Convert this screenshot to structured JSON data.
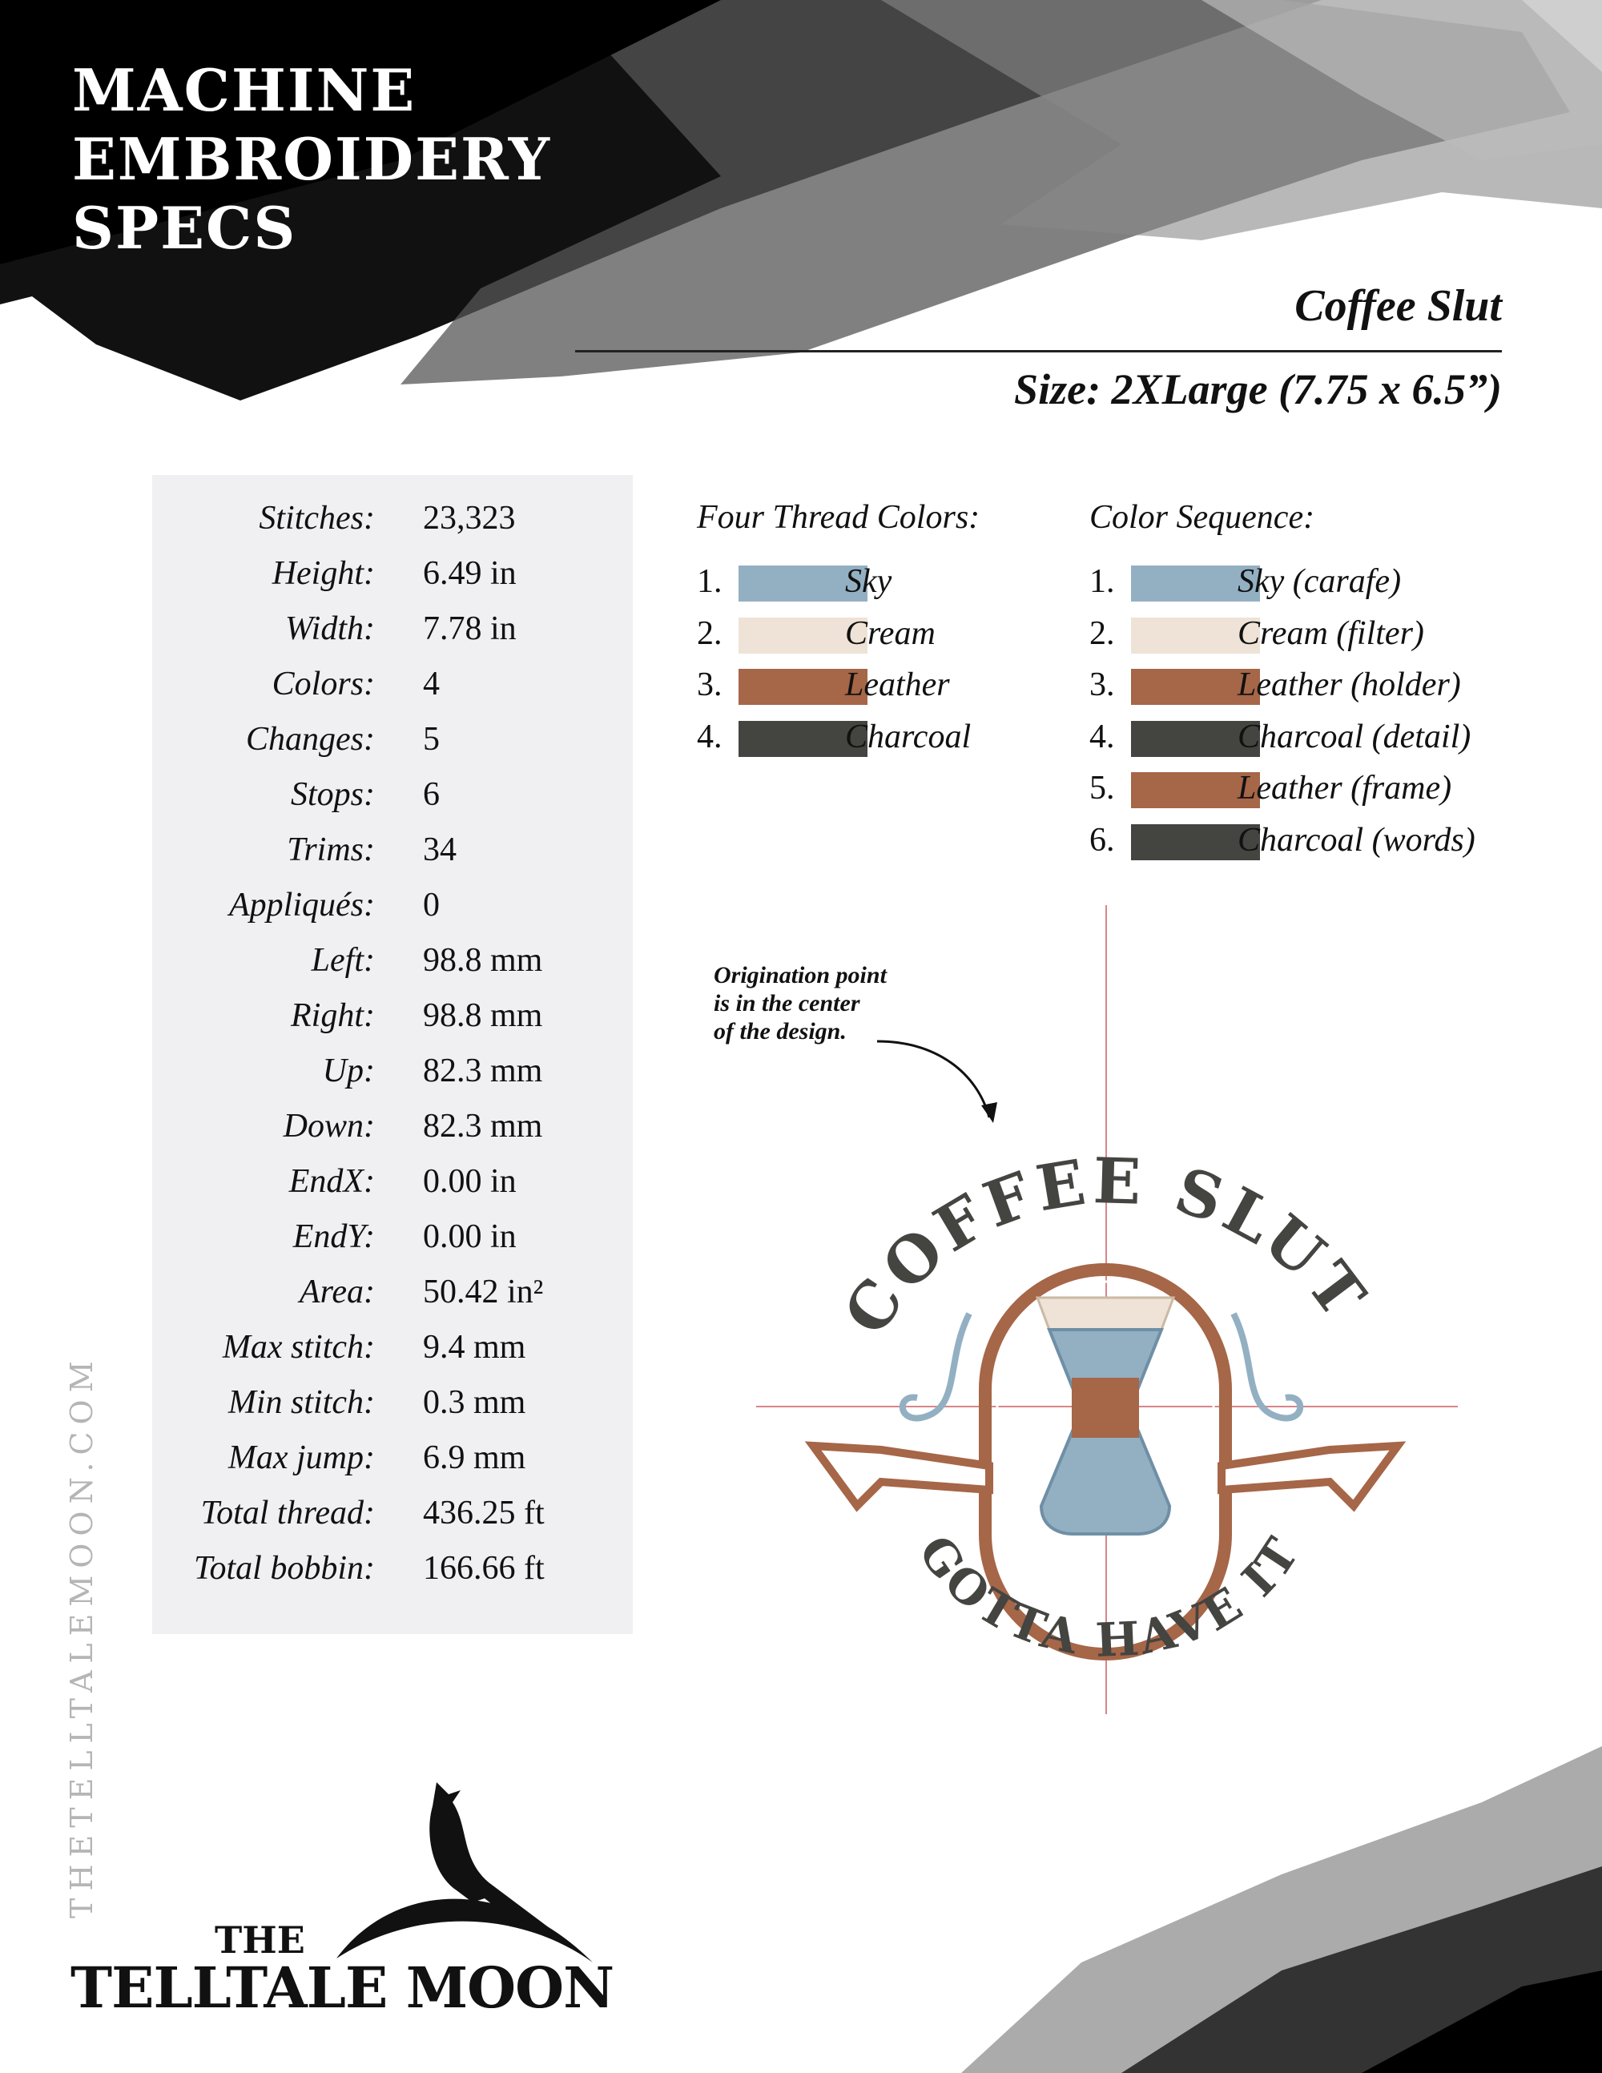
{
  "header": {
    "lines": [
      "MACHINE",
      "EMBROIDERY",
      "SPECS"
    ]
  },
  "design": {
    "title": "Coffee Slut",
    "size": "Size: 2XLarge (7.75 x 6.5”)"
  },
  "stats": [
    {
      "label": "Stitches:",
      "value": "23,323"
    },
    {
      "label": "Height:",
      "value": "6.49 in"
    },
    {
      "label": "Width:",
      "value": "7.78 in"
    },
    {
      "label": "Colors:",
      "value": "4"
    },
    {
      "label": "Changes:",
      "value": "5"
    },
    {
      "label": "Stops:",
      "value": "6"
    },
    {
      "label": "Trims:",
      "value": "34"
    },
    {
      "label": "Appliqués:",
      "value": "0"
    },
    {
      "label": "Left:",
      "value": "98.8 mm"
    },
    {
      "label": "Right:",
      "value": "98.8 mm"
    },
    {
      "label": "Up:",
      "value": "82.3 mm"
    },
    {
      "label": "Down:",
      "value": "82.3 mm"
    },
    {
      "label": "EndX:",
      "value": "0.00 in"
    },
    {
      "label": "EndY:",
      "value": "0.00 in"
    },
    {
      "label": "Area:",
      "value": "50.42 in²"
    },
    {
      "label": "Max stitch:",
      "value": "9.4 mm"
    },
    {
      "label": "Min stitch:",
      "value": "0.3 mm"
    },
    {
      "label": "Max jump:",
      "value": "6.9 mm"
    },
    {
      "label": "Total thread:",
      "value": "436.25 ft"
    },
    {
      "label": "Total bobbin:",
      "value": "166.66 ft"
    }
  ],
  "thread_colors": {
    "heading": "Four Thread Colors:",
    "items": [
      {
        "num": "1.",
        "name": "Sky",
        "color": "#93b0c3"
      },
      {
        "num": "2.",
        "name": "Cream",
        "color": "#eee3d6"
      },
      {
        "num": "3.",
        "name": "Leather",
        "color": "#a66648"
      },
      {
        "num": "4.",
        "name": "Charcoal",
        "color": "#444441"
      }
    ]
  },
  "color_sequence": {
    "heading": "Color Sequence:",
    "items": [
      {
        "num": "1.",
        "name": "Sky (carafe)",
        "color": "#93b0c3"
      },
      {
        "num": "2.",
        "name": "Cream (filter)",
        "color": "#eee3d6"
      },
      {
        "num": "3.",
        "name": "Leather (holder)",
        "color": "#a66648"
      },
      {
        "num": "4.",
        "name": "Charcoal (detail)",
        "color": "#444441"
      },
      {
        "num": "5.",
        "name": "Leather (frame)",
        "color": "#a66648"
      },
      {
        "num": "6.",
        "name": "Charcoal (words)",
        "color": "#444441"
      }
    ]
  },
  "annotation": {
    "lines": [
      "Origination point",
      "is in the center",
      "of the design."
    ]
  },
  "embroidery": {
    "top_text": "COFFEE SLUT",
    "bottom_text": "GOTTA HAVE IT"
  },
  "watermark": "THETELLTALEMOON.COM",
  "logo": {
    "the": "THE",
    "name": "TELLTALE MOON"
  }
}
